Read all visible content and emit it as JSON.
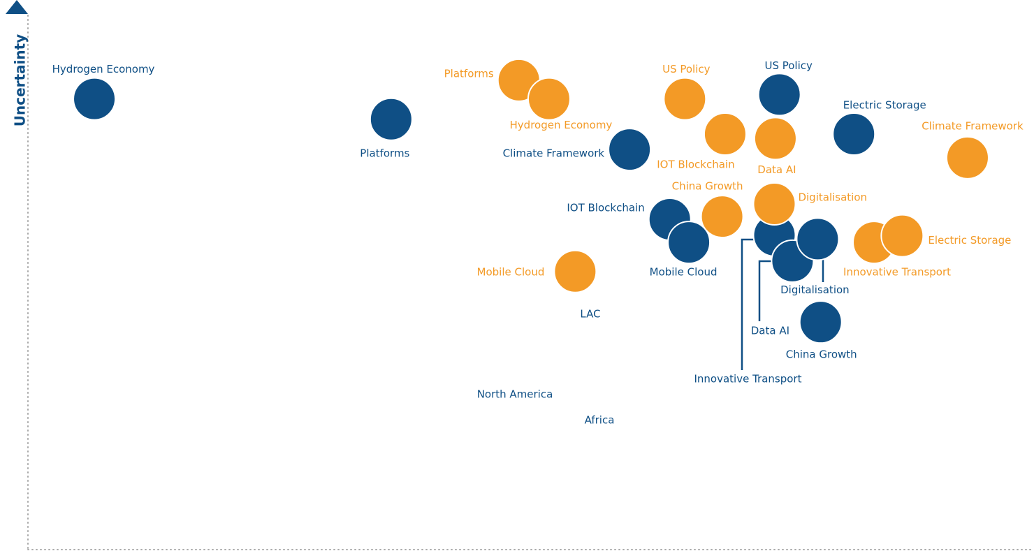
{
  "chart_data": {
    "type": "scatter",
    "y_axis_label": "Uncertainty",
    "xlim": [
      0,
      100
    ],
    "ylim": [
      0,
      100
    ],
    "series": [
      {
        "color": "#0f4f85",
        "labels": [
          "Hydrogen Economy",
          "Platforms",
          "Climate Framework",
          "US Policy",
          "Electric Storage",
          "IOT Blockchain",
          "Mobile Cloud",
          "Innovative Transport",
          "Data AI",
          "Digitalisation",
          "China Growth"
        ],
        "x": [
          6.6,
          36.1,
          59.8,
          74.7,
          82.1,
          63.8,
          65.7,
          74.2,
          76.0,
          78.5,
          78.8
        ],
        "values": [
          82.0,
          78.3,
          72.8,
          82.8,
          75.6,
          60.1,
          55.9,
          57.2,
          52.5,
          56.5,
          41.4
        ]
      },
      {
        "color": "#f39a26",
        "labels": [
          "Platforms",
          "Hydrogen Economy",
          "US Policy",
          "IOT Blockchain",
          "Data AI",
          "Climate Framework",
          "China Growth",
          "Digitalisation",
          "Innovative Transport",
          "Electric Storage",
          "Mobile Cloud"
        ],
        "x": [
          48.8,
          51.8,
          65.3,
          69.3,
          74.3,
          93.4,
          69.0,
          74.2,
          84.1,
          86.9,
          54.4
        ],
        "values": [
          85.4,
          82.0,
          82.0,
          75.6,
          74.8,
          71.3,
          60.6,
          62.9,
          55.9,
          57.1,
          50.6
        ]
      }
    ],
    "annotations": [
      "LAC",
      "North America",
      "Africa"
    ]
  }
}
